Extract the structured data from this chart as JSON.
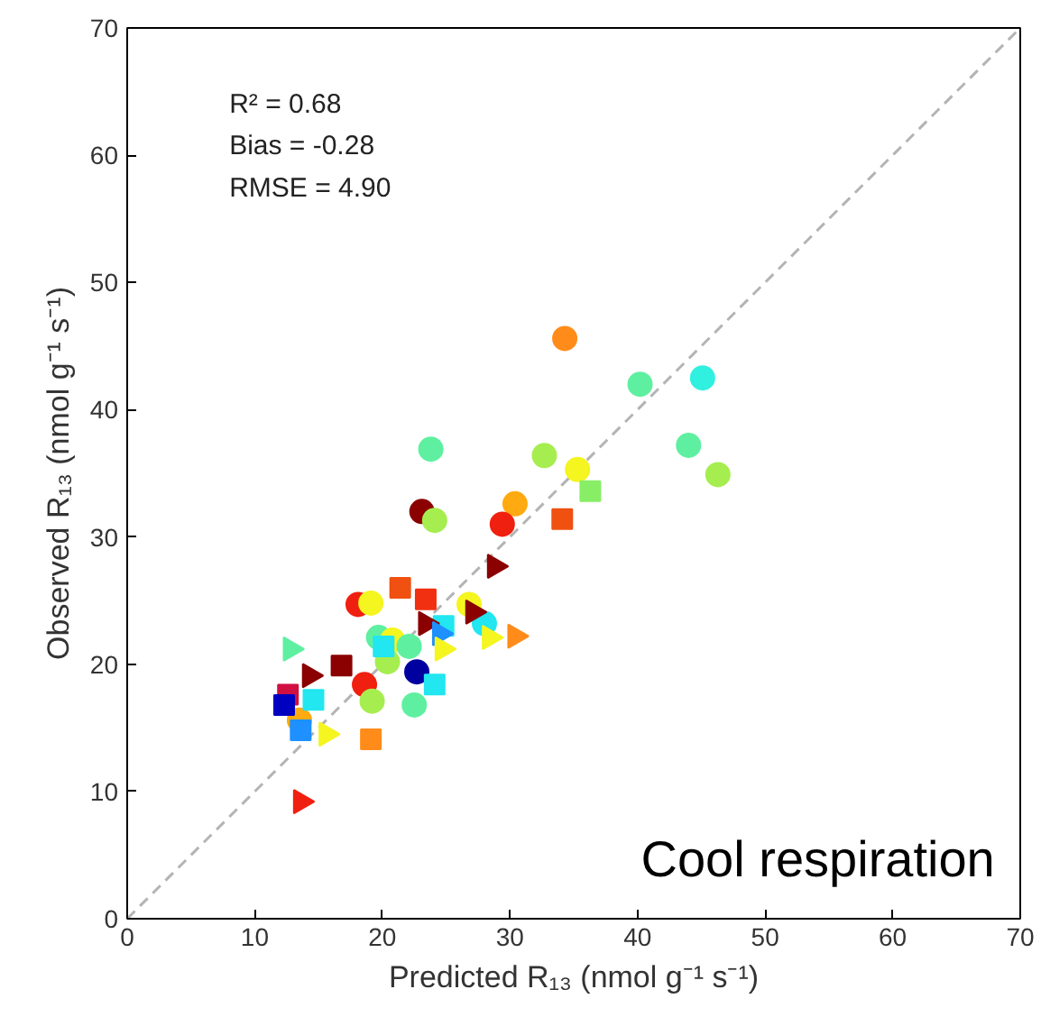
{
  "chart_data": {
    "type": "scatter",
    "xlabel": "Predicted R₁₃ (nmol g⁻¹ s⁻¹)",
    "ylabel": "Observed R₁₃ (nmol g⁻¹ s⁻¹)",
    "xlim": [
      0,
      70
    ],
    "ylim": [
      0,
      70
    ],
    "xticks": [
      0,
      10,
      20,
      30,
      40,
      50,
      60,
      70
    ],
    "yticks": [
      0,
      10,
      20,
      30,
      40,
      50,
      60,
      70
    ],
    "grid": false,
    "annotations": [
      "R² = 0.68",
      "Bias = -0.28",
      "RMSE = 4.90",
      "Cool respiration"
    ],
    "series": [
      {
        "type": "line",
        "color": "#b4b4b4",
        "line_style": "dashed",
        "x": [
          0,
          70
        ],
        "values": [
          0,
          70
        ]
      },
      {
        "marker": "circle",
        "x": [
          34.3,
          40.2,
          45.1,
          44.0,
          46.3,
          32.7,
          35.3,
          30.4,
          29.4,
          23.8,
          23.1,
          24.1,
          18.1,
          19.1,
          26.8,
          28.0,
          19.7,
          20.8,
          22.1,
          20.4,
          22.7,
          18.6,
          19.2,
          22.5,
          13.5
        ],
        "values": [
          45.6,
          42.0,
          42.5,
          37.2,
          34.9,
          36.4,
          35.3,
          32.6,
          31.0,
          36.9,
          32.0,
          31.3,
          24.7,
          24.8,
          24.7,
          23.2,
          22.1,
          21.9,
          21.4,
          20.2,
          19.4,
          18.4,
          17.1,
          16.8,
          15.6
        ],
        "colors": [
          "#ff8c1a",
          "#5ef0a0",
          "#30f0e0",
          "#5ef0a0",
          "#a6ee50",
          "#a6ee50",
          "#f5f520",
          "#ffaa10",
          "#f02010",
          "#5ef0a0",
          "#8b0000",
          "#a6ee50",
          "#f02010",
          "#f5f520",
          "#f5f520",
          "#22e6f0",
          "#5ef0a0",
          "#f5f520",
          "#5ef0a0",
          "#a6ee50",
          "#0000a0",
          "#f02010",
          "#a6ee50",
          "#5ef0a0",
          "#ffaa10"
        ]
      },
      {
        "marker": "square",
        "x": [
          36.3,
          34.1,
          21.4,
          23.4,
          24.8,
          20.1,
          16.8,
          24.1,
          12.6,
          12.3,
          14.6,
          13.6,
          19.1
        ],
        "values": [
          33.6,
          31.4,
          26.0,
          25.1,
          23.0,
          21.4,
          19.9,
          18.4,
          17.6,
          16.8,
          17.2,
          14.8,
          14.1
        ],
        "colors": [
          "#88ee66",
          "#f05010",
          "#f05010",
          "#f03010",
          "#22e6f0",
          "#22e6f0",
          "#8b0000",
          "#22e6f0",
          "#d01040",
          "#0000c0",
          "#22e6f0",
          "#1e90ff",
          "#ff8c1a"
        ]
      },
      {
        "marker": "triangle",
        "x": [
          28.8,
          27.1,
          23.4,
          24.5,
          28.4,
          30.4,
          12.8,
          24.7,
          14.3,
          15.6,
          13.6
        ],
        "values": [
          27.7,
          24.1,
          23.2,
          22.4,
          22.1,
          22.2,
          21.2,
          21.2,
          19.1,
          14.5,
          9.2
        ],
        "colors": [
          "#8b0000",
          "#8b0000",
          "#8b0000",
          "#1e90ff",
          "#f5f520",
          "#ff8c1a",
          "#5ef0a0",
          "#f5f520",
          "#8b0000",
          "#f5f520",
          "#f02010"
        ]
      }
    ]
  }
}
